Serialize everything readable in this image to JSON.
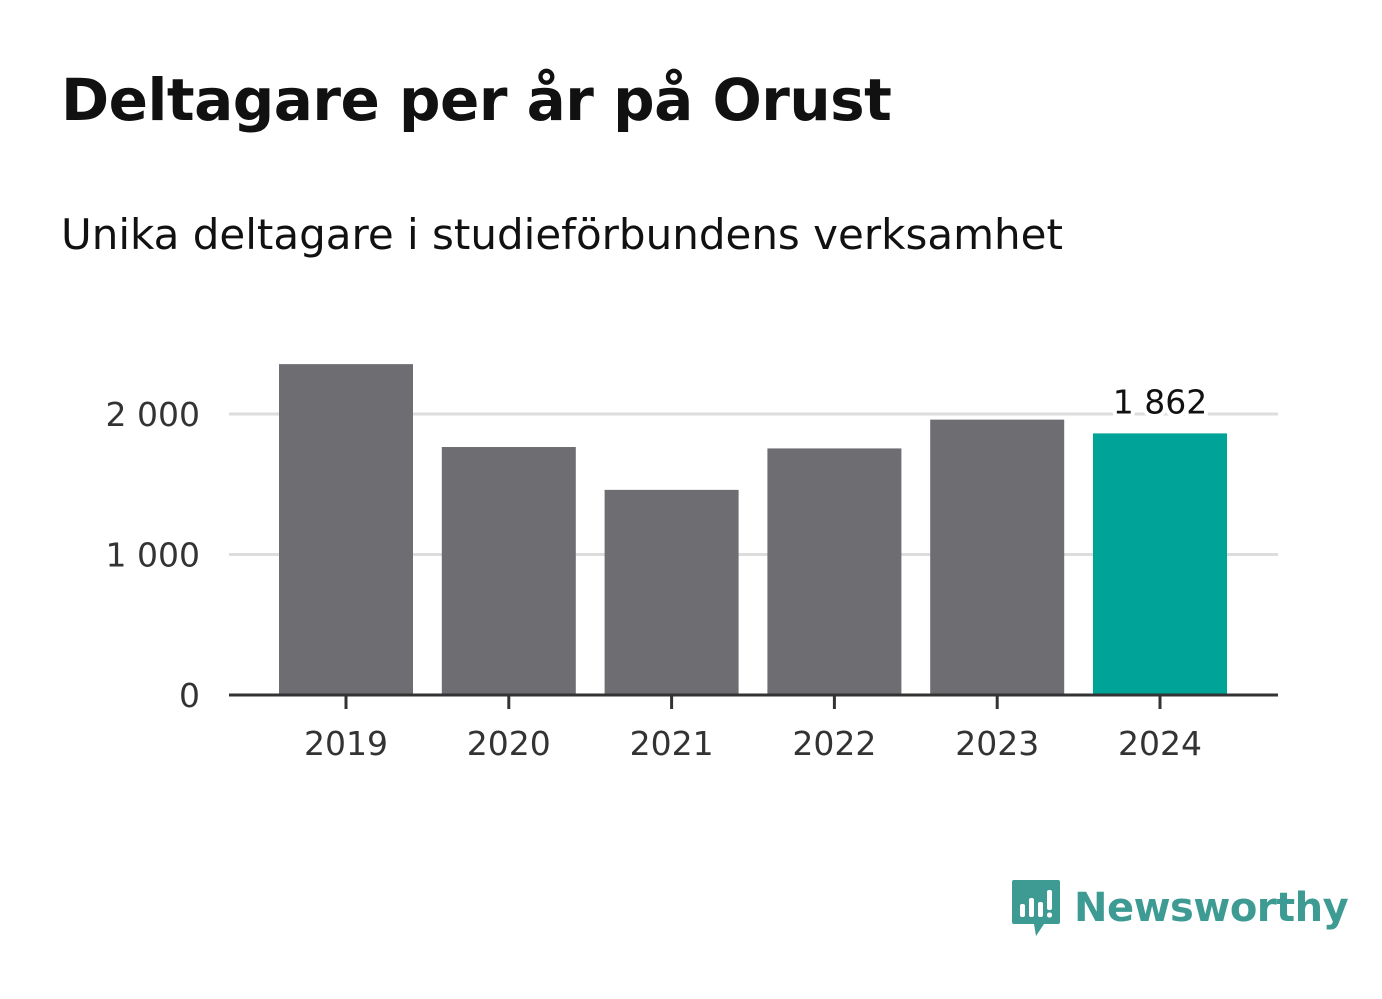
{
  "title": "Deltagare per år på Orust",
  "subtitle": "Unika deltagare i studieförbundens verksamhet",
  "chart_data": {
    "type": "bar",
    "categories": [
      "2019",
      "2020",
      "2021",
      "2022",
      "2023",
      "2024"
    ],
    "values": [
      2355,
      1765,
      1460,
      1755,
      1960,
      1862
    ],
    "highlight_index": 5,
    "data_labels": [
      {
        "index": 5,
        "text": "1 862"
      }
    ],
    "y_ticks": [
      {
        "value": 0,
        "label": "0"
      },
      {
        "value": 1000,
        "label": "1 000"
      },
      {
        "value": 2000,
        "label": "2 000"
      }
    ],
    "ylim": [
      0,
      2500
    ],
    "grid": true,
    "colors": {
      "bar": "#6e6d72",
      "highlight": "#00a398",
      "grid": "#dddddd",
      "axis": "#333333"
    }
  },
  "branding": {
    "logo_text": "Newsworthy",
    "logo_icon": "newsworthy-bar-chart-icon",
    "logo_color": "#3e9b93"
  }
}
